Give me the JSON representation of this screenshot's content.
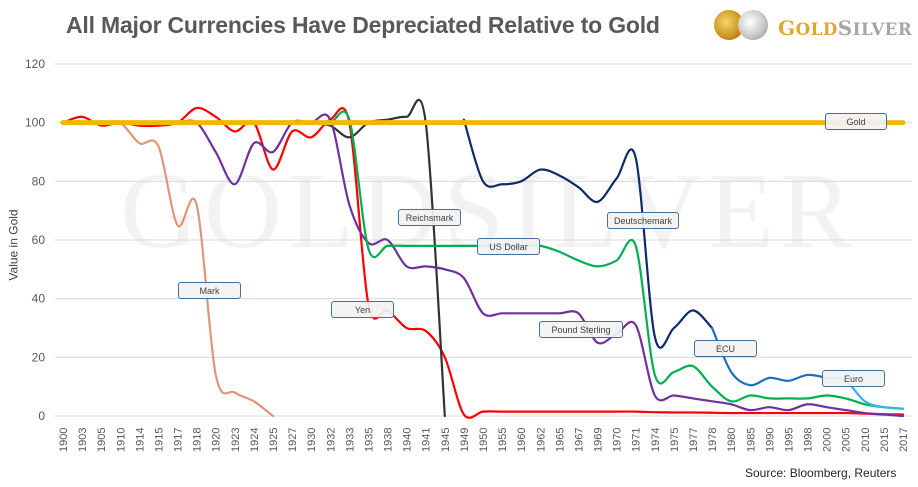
{
  "header": {
    "title": "All Major Currencies Have Depreciated Relative to Gold",
    "logo_text": "GoldSilver"
  },
  "watermark": "GOLDSILVER",
  "source": "Source: Bloomberg, Reuters",
  "chart_data": {
    "type": "line",
    "title": "All Major Currencies Have Depreciated Relative to Gold",
    "xlabel": "",
    "ylabel": "Value in Gold",
    "ylim": [
      0,
      120
    ],
    "yticks": [
      0,
      20,
      40,
      60,
      80,
      100,
      120
    ],
    "grid": true,
    "legend": "none (inline labels)",
    "categories": [
      "1900",
      "1903",
      "1905",
      "1910",
      "1914",
      "1915",
      "1917",
      "1918",
      "1920",
      "1923",
      "1924",
      "1925",
      "1927",
      "1930",
      "1932",
      "1933",
      "1935",
      "1938",
      "1940",
      "1941",
      "1945",
      "1949",
      "1950",
      "1955",
      "1960",
      "1962",
      "1965",
      "1967",
      "1969",
      "1970",
      "1971",
      "1974",
      "1975",
      "1977",
      "1978",
      "1980",
      "1985",
      "1990",
      "1995",
      "1998",
      "2000",
      "2005",
      "2010",
      "2015",
      "2017"
    ],
    "series": [
      {
        "name": "Mark",
        "color": "#e0967a",
        "values": [
          100,
          100,
          100,
          100,
          93,
          92,
          65,
          72,
          14,
          8,
          5,
          0,
          null,
          null,
          null,
          null,
          null,
          null,
          null,
          null,
          null,
          null,
          null,
          null,
          null,
          null,
          null,
          null,
          null,
          null,
          null,
          null,
          null,
          null,
          null,
          null,
          null,
          null,
          null,
          null,
          null,
          null,
          null,
          null,
          null
        ]
      },
      {
        "name": "Yen",
        "color": "#ff0000",
        "values": [
          100,
          102,
          99,
          100,
          99,
          99,
          100,
          105,
          102,
          97,
          100,
          84,
          97,
          95,
          101,
          100,
          38,
          36,
          30,
          29,
          20,
          0.5,
          1.5,
          1.5,
          1.5,
          1.5,
          1.5,
          1.5,
          1.5,
          1.5,
          1.5,
          1.3,
          1.2,
          1.2,
          1.1,
          1,
          1,
          1,
          1,
          1,
          1,
          1,
          0.8,
          0.6,
          0.5
        ]
      },
      {
        "name": "Reichsmark",
        "color": "#333333",
        "values": [
          null,
          null,
          null,
          null,
          null,
          null,
          null,
          null,
          null,
          null,
          null,
          null,
          null,
          100,
          99,
          95,
          100,
          101,
          102,
          100,
          0,
          null,
          null,
          null,
          null,
          null,
          null,
          null,
          null,
          null,
          null,
          null,
          null,
          null,
          null,
          null,
          null,
          null,
          null,
          null,
          null,
          null,
          null,
          null,
          null
        ]
      },
      {
        "name": "Pound Sterling",
        "color": "#7030a0",
        "values": [
          100,
          100,
          100,
          100,
          100,
          100,
          100,
          100,
          90,
          79,
          93,
          90,
          100,
          100,
          101,
          72,
          59,
          60,
          51,
          51,
          50,
          47,
          35,
          35,
          35,
          35,
          35,
          35,
          25,
          28,
          31,
          7,
          7,
          6,
          5,
          4,
          2,
          3,
          2,
          4,
          3,
          2,
          1,
          0.5,
          0
        ]
      },
      {
        "name": "US Dollar",
        "color": "#00b050",
        "values": [
          100,
          100,
          100,
          100,
          100,
          100,
          100,
          100,
          100,
          100,
          100,
          100,
          100,
          100,
          100,
          101,
          57,
          58,
          58,
          58,
          58,
          58,
          58,
          58,
          58,
          58,
          56,
          53,
          51,
          53,
          58,
          14,
          15,
          17,
          10,
          5,
          7,
          6,
          6,
          6,
          7,
          6,
          4,
          3,
          2.5
        ]
      },
      {
        "name": "Deutschemark",
        "color": "#0d2a6b",
        "values": [
          null,
          null,
          null,
          null,
          null,
          null,
          null,
          null,
          null,
          null,
          null,
          null,
          null,
          null,
          null,
          null,
          null,
          null,
          null,
          null,
          null,
          101,
          80,
          79,
          80,
          84,
          82,
          78,
          73,
          81,
          88,
          27,
          30,
          36,
          30,
          null,
          null,
          null,
          null,
          null,
          null,
          null,
          null,
          null,
          null
        ]
      },
      {
        "name": "ECU",
        "color": "#1f6fc0",
        "values": [
          null,
          null,
          null,
          null,
          null,
          null,
          null,
          null,
          null,
          null,
          null,
          null,
          null,
          null,
          null,
          null,
          null,
          null,
          null,
          null,
          null,
          null,
          null,
          null,
          null,
          null,
          null,
          null,
          null,
          null,
          null,
          null,
          null,
          null,
          30,
          15,
          10.5,
          13,
          12,
          14,
          13,
          null,
          null,
          null,
          null
        ]
      },
      {
        "name": "Euro",
        "color": "#33b5e8",
        "values": [
          null,
          null,
          null,
          null,
          null,
          null,
          null,
          null,
          null,
          null,
          null,
          null,
          null,
          null,
          null,
          null,
          null,
          null,
          null,
          null,
          null,
          null,
          null,
          null,
          null,
          null,
          null,
          null,
          null,
          null,
          null,
          null,
          null,
          null,
          null,
          null,
          null,
          null,
          null,
          null,
          13,
          12,
          5,
          3,
          2.5
        ]
      },
      {
        "name": "Gold",
        "color": "#f2b800",
        "values": [
          100,
          100,
          100,
          100,
          100,
          100,
          100,
          100,
          100,
          100,
          100,
          100,
          100,
          100,
          100,
          100,
          100,
          100,
          100,
          100,
          100,
          100,
          100,
          100,
          100,
          100,
          100,
          100,
          100,
          100,
          100,
          100,
          100,
          100,
          100,
          100,
          100,
          100,
          100,
          100,
          100,
          100,
          100,
          100,
          100
        ]
      }
    ]
  }
}
